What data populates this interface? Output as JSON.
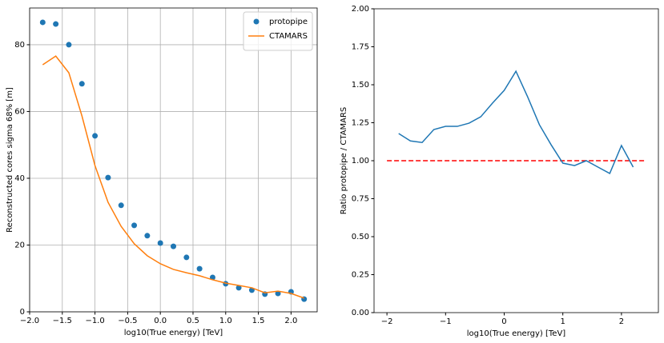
{
  "chart_data": [
    {
      "type": "line",
      "xlabel": "log10(True energy) [TeV]",
      "ylabel": "Reconstructed cores sigma 68% [m]",
      "x": [
        -1.8,
        -1.6,
        -1.4,
        -1.2,
        -1.0,
        -0.8,
        -0.6,
        -0.4,
        -0.2,
        0.0,
        0.2,
        0.4,
        0.6,
        0.8,
        1.0,
        1.2,
        1.4,
        1.6,
        1.8,
        2.0,
        2.2
      ],
      "series": [
        {
          "name": "protopipe",
          "type": "scatter",
          "color": "#1f77b4",
          "values": [
            86.7,
            86.2,
            80,
            68.3,
            52.7,
            40.2,
            31.9,
            25.9,
            22.8,
            20.6,
            19.6,
            16.3,
            12.9,
            10.3,
            8.4,
            7.2,
            6.5,
            5.3,
            5.5,
            6.0,
            3.8
          ]
        },
        {
          "name": "CTAMARS",
          "type": "line",
          "color": "#ff7f0e",
          "values": [
            74,
            76.6,
            71.6,
            58.7,
            43.8,
            32.8,
            25.6,
            20.4,
            16.8,
            14.4,
            12.7,
            11.7,
            10.8,
            9.6,
            8.6,
            7.9,
            7.2,
            5.7,
            6.2,
            5.5,
            4.1
          ]
        }
      ],
      "xlim": [
        -2.0,
        2.4
      ],
      "xticks": [
        {
          "value": -2.0,
          "label": "−2.0"
        },
        {
          "value": -1.5,
          "label": "−1.5"
        },
        {
          "value": -1.0,
          "label": "−1.0"
        },
        {
          "value": -0.5,
          "label": "−0.5"
        },
        {
          "value": 0.0,
          "label": "0.0"
        },
        0.5,
        {
          "value": 1.0,
          "label": "1.0"
        },
        1.5,
        {
          "value": 2.0,
          "label": "2.0"
        }
      ],
      "ylim": [
        0,
        91
      ],
      "yticks": [
        0,
        20,
        40,
        60,
        80
      ],
      "grid": true,
      "legend": "upper-right"
    },
    {
      "type": "line",
      "xlabel": "log10(True energy) [TeV]",
      "ylabel": "Ratio protopipe / CTAMARS",
      "x": [
        -1.8,
        -1.6,
        -1.4,
        -1.2,
        -1.0,
        -0.8,
        -0.6,
        -0.4,
        -0.2,
        0.0,
        0.2,
        0.4,
        0.6,
        0.8,
        1.0,
        1.2,
        1.4,
        1.6,
        1.8,
        2.0,
        2.2
      ],
      "series": [
        {
          "type": "line",
          "color": "#1f77b4",
          "values": [
            1.179,
            1.13,
            1.12,
            1.205,
            1.226,
            1.226,
            1.247,
            1.289,
            1.379,
            1.463,
            1.589,
            1.42,
            1.237,
            1.105,
            0.984,
            0.968,
            1.0,
            0.958,
            0.916,
            1.1,
            0.958
          ]
        }
      ],
      "reference_line": {
        "y": 1.0,
        "x": [
          -2,
          2.4
        ],
        "color": "#ff0000"
      },
      "xlim": [
        -2.22,
        2.63
      ],
      "xticks": [
        {
          "value": -2,
          "label": "−2"
        },
        {
          "value": -1,
          "label": "−1"
        },
        0,
        1,
        2
      ],
      "ylim": [
        0,
        2
      ],
      "yticks": [
        {
          "value": 0,
          "label": "0.00"
        },
        {
          "value": 0.25,
          "label": "0.25"
        },
        {
          "value": 0.5,
          "label": "0.50"
        },
        {
          "value": 0.75,
          "label": "0.75"
        },
        {
          "value": 1.0,
          "label": "1.00"
        },
        {
          "value": 1.25,
          "label": "1.25"
        },
        {
          "value": 1.5,
          "label": "1.50"
        },
        {
          "value": 1.75,
          "label": "1.75"
        },
        {
          "value": 2.0,
          "label": "2.00"
        }
      ],
      "grid": false
    }
  ]
}
